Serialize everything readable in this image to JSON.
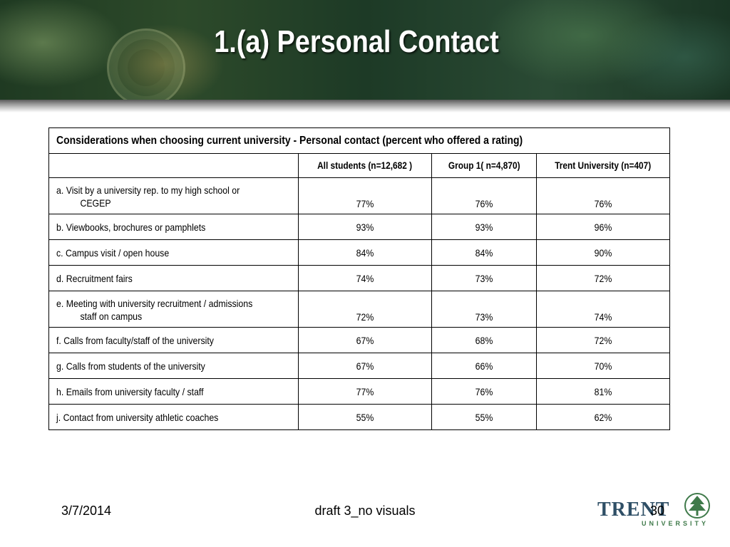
{
  "slide": {
    "title": "1.(a) Personal Contact"
  },
  "table": {
    "caption": "Considerations when choosing current university -  Personal contact (percent who offered a rating)",
    "headers": [
      "",
      "All students (n=12,682 )",
      "Group 1( n=4,870)",
      "Trent University (n=407)"
    ],
    "rows": [
      {
        "label_line1": "a. Visit by a university rep. to my high school or",
        "label_line2": "CEGEP",
        "values": [
          "77%",
          "76%",
          "76%"
        ]
      },
      {
        "label_line1": "b. Viewbooks, brochures or pamphlets",
        "label_line2": "",
        "values": [
          "93%",
          "93%",
          "96%"
        ]
      },
      {
        "label_line1": "c. Campus visit /  open house",
        "label_line2": "",
        "values": [
          "84%",
          "84%",
          "90%"
        ]
      },
      {
        "label_line1": "d. Recruitment fairs",
        "label_line2": "",
        "values": [
          "74%",
          "73%",
          "72%"
        ]
      },
      {
        "label_line1": "e. Meeting with university recruitment / admissions",
        "label_line2": "staff on campus",
        "values": [
          "72%",
          "73%",
          "74%"
        ]
      },
      {
        "label_line1": "f. Calls from faculty/staff of the university",
        "label_line2": "",
        "values": [
          "67%",
          "68%",
          "72%"
        ]
      },
      {
        "label_line1": "g. Calls from students of the university",
        "label_line2": "",
        "values": [
          "67%",
          "66%",
          "70%"
        ]
      },
      {
        "label_line1": "h. Emails from university faculty / staff",
        "label_line2": "",
        "values": [
          "77%",
          "76%",
          "81%"
        ]
      },
      {
        "label_line1": "j. Contact from university athletic coaches",
        "label_line2": "",
        "values": [
          "55%",
          "55%",
          "62%"
        ]
      }
    ]
  },
  "footer": {
    "date": "3/7/2014",
    "center": "draft 3_no visuals",
    "page": "30"
  },
  "logo": {
    "word": "TRENT",
    "sub": "UNIVERSITY",
    "icon": "tree-icon",
    "color_primary": "#2f4f66",
    "color_accent": "#3f7a4a"
  }
}
